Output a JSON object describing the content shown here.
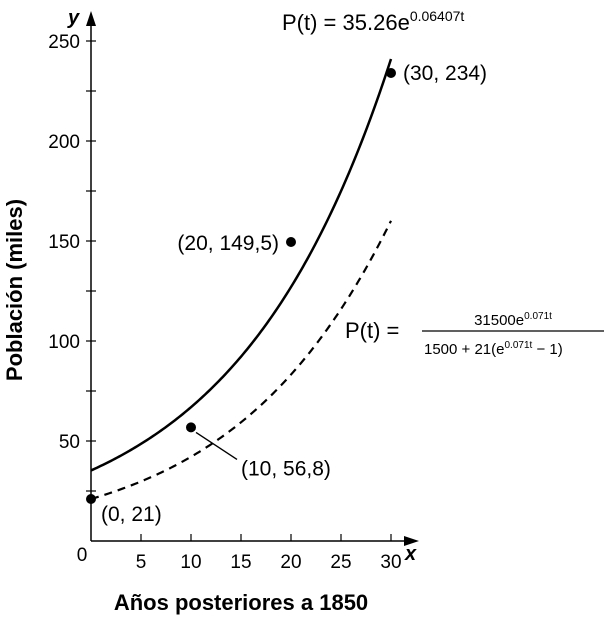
{
  "chart_data": {
    "type": "line",
    "xlabel": "Años posteriores a 1850",
    "ylabel": "Población (miles)",
    "x_axis_letter": "x",
    "y_axis_letter": "y",
    "xlim": [
      0,
      30
    ],
    "ylim": [
      0,
      250
    ],
    "x_ticks": [
      5,
      10,
      15,
      20,
      25,
      30
    ],
    "x_origin_label": "0",
    "y_ticks": [
      50,
      100,
      150,
      200,
      250
    ],
    "grid": false,
    "series": [
      {
        "style": "solid",
        "model": "exponential",
        "coef": 35.26,
        "rate": 0.06407,
        "t_range": [
          0,
          30
        ],
        "annotation": {
          "lhs": "P(t) = 35.26e",
          "exponent": "0.06407t"
        }
      },
      {
        "style": "dashed",
        "model": "logistic",
        "K": 1500,
        "P0": 21,
        "rate": 0.071,
        "t_range": [
          0,
          30
        ],
        "annotation": {
          "lhs": "P(t) =",
          "numerator": "31500e",
          "numerator_exp": "0.071t",
          "denominator_a": "1500 + 21(e",
          "denominator_exp": "0.071t",
          "denominator_b": " − 1)"
        }
      }
    ],
    "points": [
      {
        "x": 0,
        "y": 21,
        "label": "(0, 21)"
      },
      {
        "x": 10,
        "y": 56.8,
        "label": "(10, 56,8)"
      },
      {
        "x": 20,
        "y": 149.5,
        "label": "(20, 149,5)"
      },
      {
        "x": 30,
        "y": 234,
        "label": "(30, 234)"
      }
    ]
  }
}
